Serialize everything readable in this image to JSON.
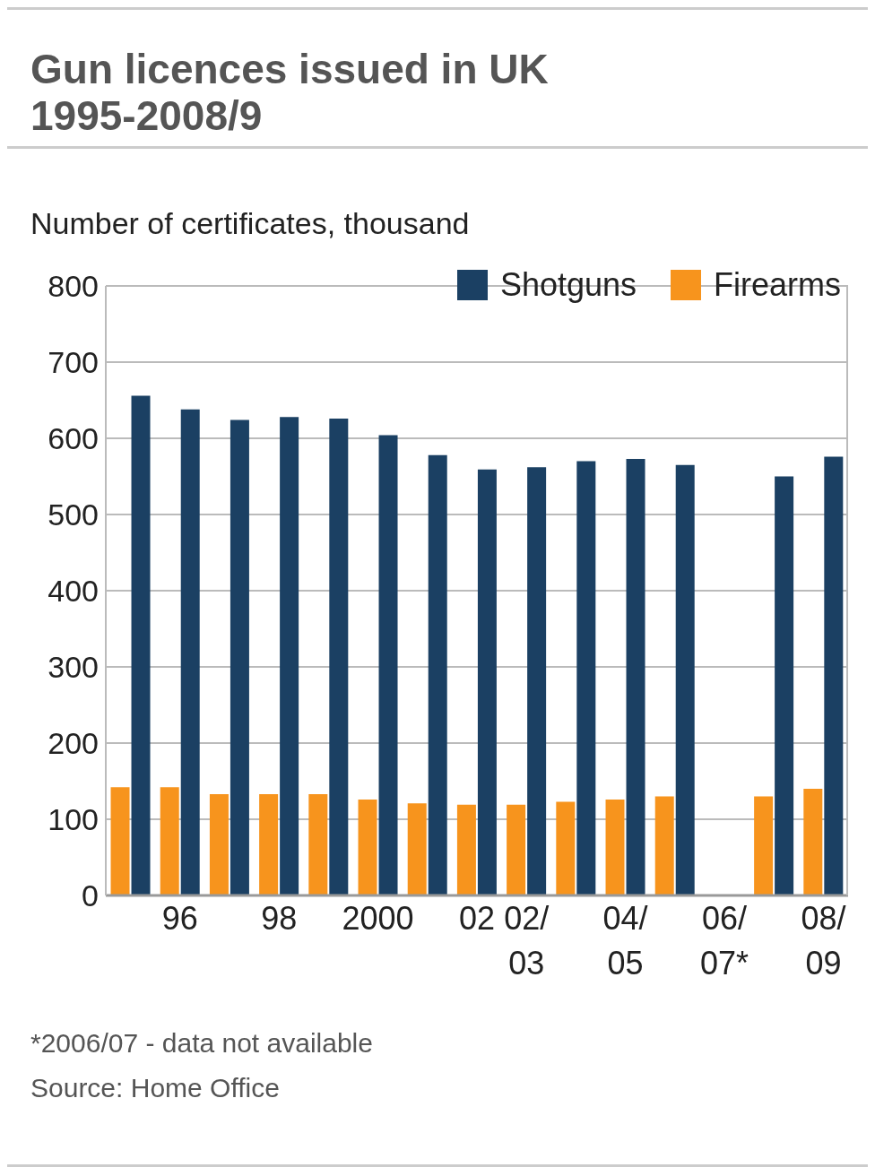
{
  "chart_data": {
    "type": "bar",
    "title": "Gun licences issued in UK 1995-2008/9",
    "ylabel": "Number of certificates, thousand",
    "categories": [
      null,
      "96",
      null,
      "98",
      null,
      "2000",
      null,
      "02",
      "02/03",
      null,
      "04/05",
      null,
      "06/07*",
      null,
      "08/09"
    ],
    "series": [
      {
        "name": "Shotguns",
        "color": "#1b4063",
        "values": [
          656,
          638,
          624,
          628,
          626,
          604,
          578,
          559,
          562,
          570,
          573,
          565,
          null,
          550,
          576
        ]
      },
      {
        "name": "Firearms",
        "color": "#f7941d",
        "values": [
          142,
          142,
          133,
          133,
          133,
          126,
          121,
          119,
          119,
          123,
          126,
          130,
          null,
          130,
          140
        ]
      }
    ],
    "ylim": [
      0,
      800
    ],
    "yticks": [
      0,
      100,
      200,
      300,
      400,
      500,
      600,
      700,
      800
    ],
    "grid": "y",
    "legend": "top right",
    "annotations": [
      "*2006/07 - data not available",
      "Source: Home Office"
    ]
  }
}
